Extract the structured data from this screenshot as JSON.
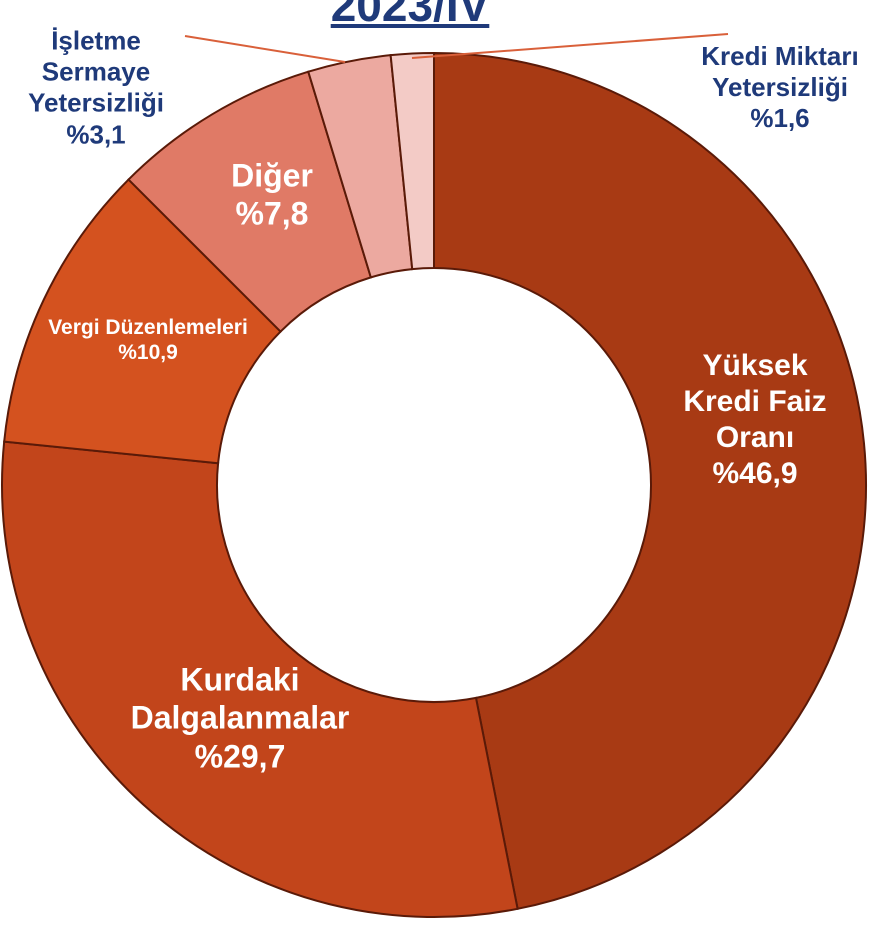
{
  "chart_data": {
    "type": "donut",
    "title": "2023/IV",
    "categories": [
      "Yüksek Kredi Faiz Oranı",
      "Kurdaki Dalgalanmalar",
      "Vergi Düzenlemeleri",
      "Diğer",
      "İşletme Sermaye Yetersizliği",
      "Kredi Miktarı Yetersizliği"
    ],
    "values": [
      46.9,
      29.7,
      10.9,
      7.8,
      3.1,
      1.6
    ],
    "value_labels": [
      "%46,9",
      "%29,7",
      "%10,9",
      "%7,8",
      "%3,1",
      "%1,6"
    ],
    "colors": [
      "#a83a14",
      "#c2451b",
      "#d4521f",
      "#e07a66",
      "#eca9a0",
      "#f3cbc6"
    ]
  }
}
